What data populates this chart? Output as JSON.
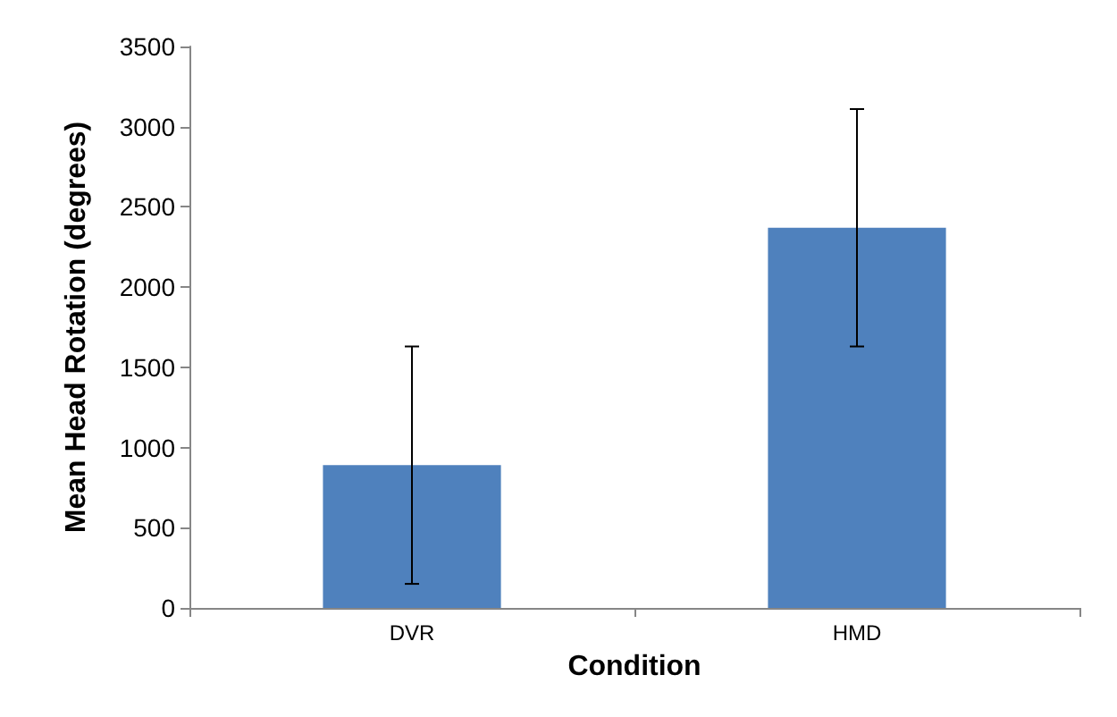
{
  "chart_data": {
    "type": "bar",
    "xlabel": "Condition",
    "ylabel": "Mean Head Rotation (degrees)",
    "categories": [
      "DVR",
      "HMD"
    ],
    "values": [
      890,
      2370
    ],
    "errors": [
      740,
      740
    ],
    "color": "#4f81bd",
    "ylim": [
      0,
      3500
    ],
    "yticks": [
      0,
      500,
      1000,
      1500,
      2000,
      2500,
      3000,
      3500
    ],
    "grid": false
  }
}
